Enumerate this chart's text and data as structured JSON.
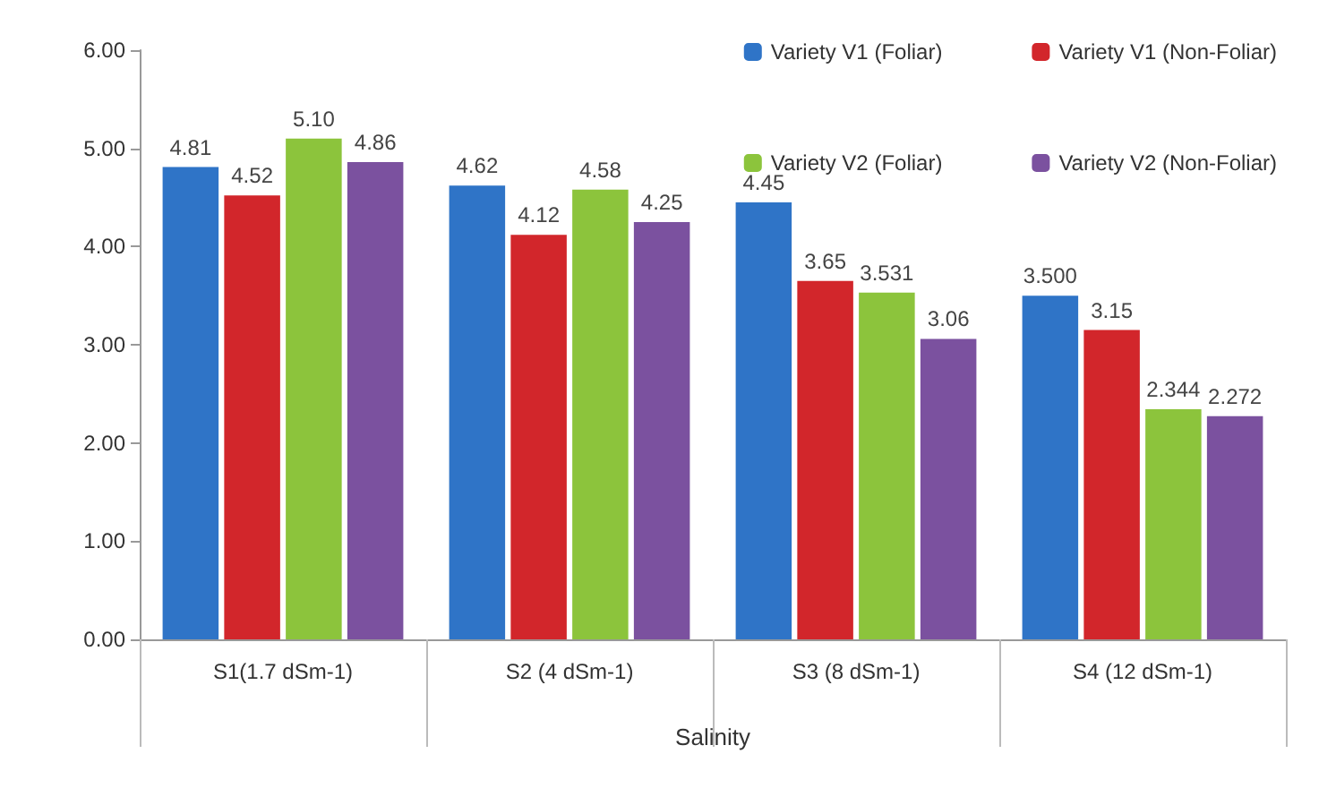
{
  "chart_data": {
    "type": "bar",
    "xlabel": "Salinity",
    "categories": [
      "S1(1.7 dSm-1)",
      "S2 (4 dSm-1)",
      "S3 (8 dSm-1)",
      "S4 (12 dSm-1)"
    ],
    "series": [
      {
        "name": "Variety V1 (Foliar)",
        "color": "#2f74c7",
        "values": [
          4.81,
          4.62,
          4.45,
          3.5
        ],
        "value_labels": [
          "4.81",
          "4.62",
          "4.45",
          "3.500"
        ]
      },
      {
        "name": "Variety V1 (Non-Foliar)",
        "color": "#d2262b",
        "values": [
          4.52,
          4.12,
          3.65,
          3.15
        ],
        "value_labels": [
          "4.52",
          "4.12",
          "3.65",
          "3.15"
        ]
      },
      {
        "name": "Variety V2 (Foliar)",
        "color": "#8cc43c",
        "values": [
          5.1,
          4.58,
          3.531,
          2.344
        ],
        "value_labels": [
          "5.10",
          "4.58",
          "3.531",
          "2.344"
        ]
      },
      {
        "name": "Variety V2 (Non-Foliar)",
        "color": "#7b519f",
        "values": [
          4.86,
          4.25,
          3.06,
          2.272
        ],
        "value_labels": [
          "4.86",
          "4.25",
          "3.06",
          "2.272"
        ]
      }
    ],
    "ylim": [
      0,
      6
    ],
    "yticks": [
      {
        "value": 0,
        "label": "0.00"
      },
      {
        "value": 1,
        "label": "1.00"
      },
      {
        "value": 2,
        "label": "2.00"
      },
      {
        "value": 3,
        "label": "3.00"
      },
      {
        "value": 4,
        "label": "4.00"
      },
      {
        "value": 5,
        "label": "5.00"
      },
      {
        "value": 6,
        "label": "6.00"
      }
    ],
    "legend": "top right",
    "grid": false
  }
}
